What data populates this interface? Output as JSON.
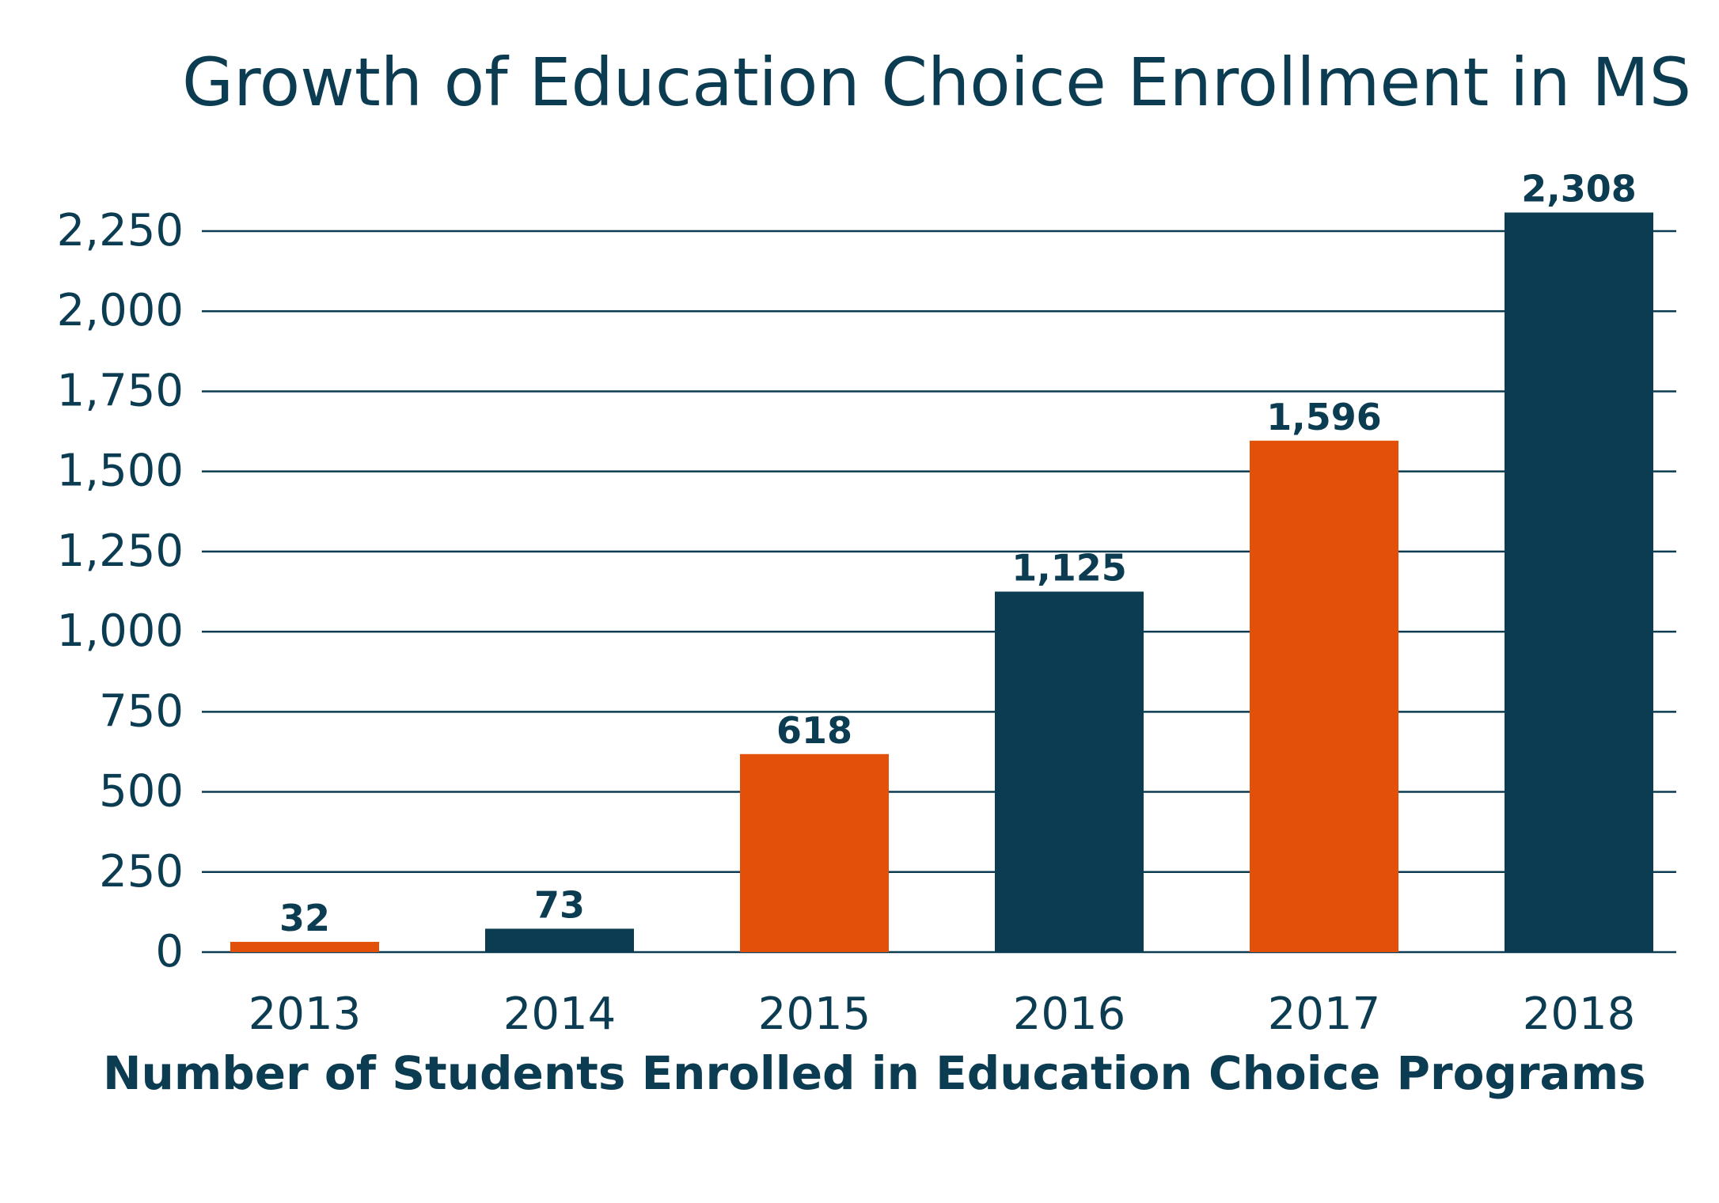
{
  "chart_data": {
    "type": "bar",
    "title": "Growth of Education Choice Enrollment in MS",
    "xlabel": "Number of Students Enrolled in Education Choice Programs",
    "ylabel": "",
    "categories": [
      "2013",
      "2014",
      "2015",
      "2016",
      "2017",
      "2018"
    ],
    "values": [
      32,
      73,
      618,
      1125,
      1596,
      2308
    ],
    "value_labels": [
      "32",
      "73",
      "618",
      "1,125",
      "1,596",
      "2,308"
    ],
    "bar_colors": [
      "#e2500a",
      "#0b3c51",
      "#e2500a",
      "#0b3c51",
      "#e2500a",
      "#0b3c51"
    ],
    "ylim": [
      0,
      2250
    ],
    "yticks": [
      0,
      250,
      500,
      750,
      1000,
      1250,
      1500,
      1750,
      2000,
      2250
    ],
    "ytick_labels": [
      "0",
      "250",
      "500",
      "750",
      "1,000",
      "1,250",
      "1,500",
      "1,750",
      "2,000",
      "2,250"
    ],
    "grid": true,
    "legend": "none"
  },
  "colors": {
    "text": "#0b3c51",
    "orange": "#e2500a",
    "navy": "#0b3c51"
  }
}
